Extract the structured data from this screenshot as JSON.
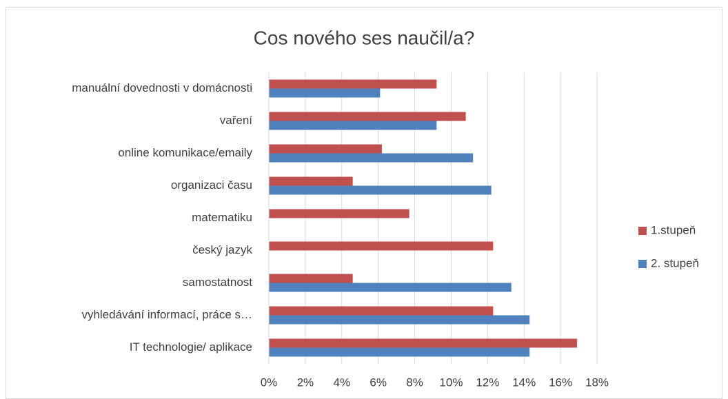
{
  "chart_data": {
    "type": "bar",
    "orientation": "horizontal",
    "title": "Cos nového ses naučil/a?",
    "categories": [
      "manuální dovednosti v domácnosti",
      "vaření",
      "online komunikace/emaily",
      "organizaci času",
      "matematiku",
      "český jazyk",
      "samostatnost",
      "vyhledávání informací, práce s…",
      "IT technologie/ aplikace"
    ],
    "series": [
      {
        "name": "1.stupeň",
        "color": "#c0504d",
        "values": [
          9.2,
          10.8,
          6.2,
          4.6,
          7.7,
          12.3,
          4.6,
          12.3,
          16.9
        ]
      },
      {
        "name": "2. stupeň",
        "color": "#4f81bd",
        "values": [
          6.1,
          9.2,
          11.2,
          12.2,
          0,
          0,
          13.3,
          14.3,
          14.3
        ]
      }
    ],
    "xlim": [
      0,
      18
    ],
    "xticks": [
      {
        "value": 0,
        "label": "0%"
      },
      {
        "value": 2,
        "label": "2%"
      },
      {
        "value": 4,
        "label": "4%"
      },
      {
        "value": 6,
        "label": "6%"
      },
      {
        "value": 8,
        "label": "8%"
      },
      {
        "value": 10,
        "label": "10%"
      },
      {
        "value": 12,
        "label": "12%"
      },
      {
        "value": 14,
        "label": "14%"
      },
      {
        "value": 16,
        "label": "16%"
      },
      {
        "value": 18,
        "label": "18%"
      }
    ],
    "grid": true,
    "legend": "right"
  }
}
